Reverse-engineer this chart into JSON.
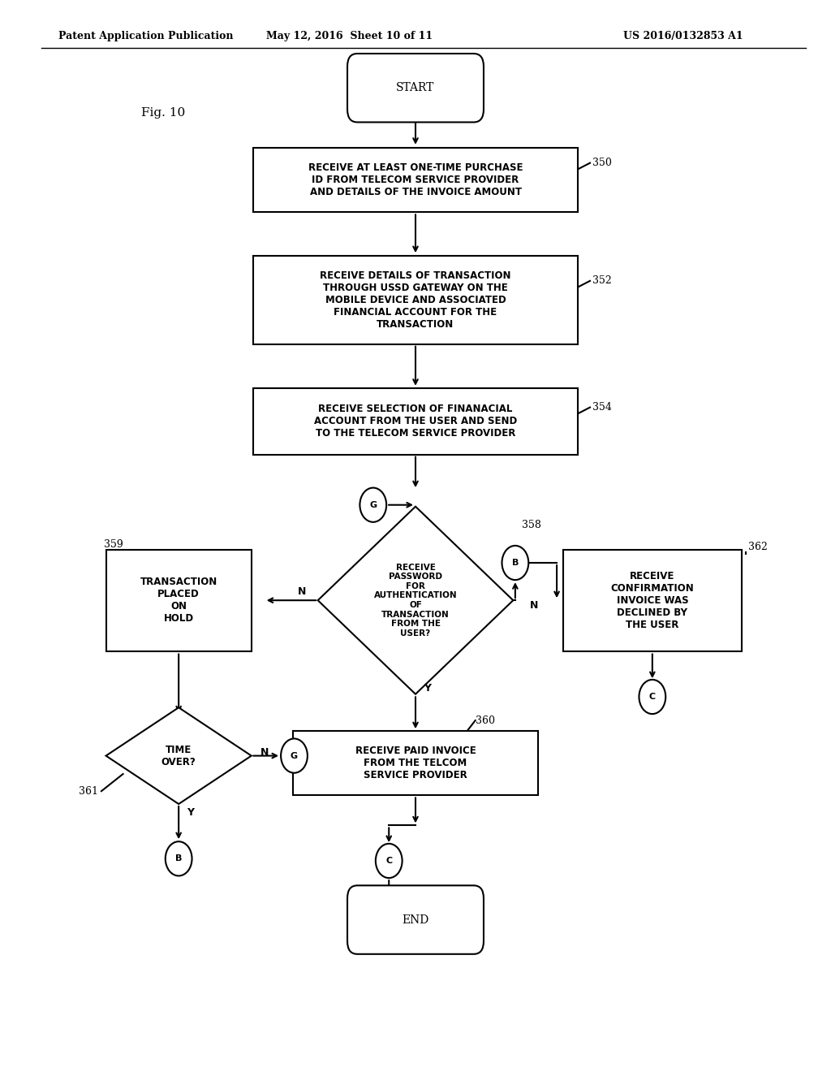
{
  "header_left": "Patent Application Publication",
  "header_mid": "May 12, 2016  Sheet 10 of 11",
  "header_right": "US 2016/0132853 A1",
  "fig_label": "Fig. 10",
  "bg_color": "#ffffff",
  "line_color": "#000000",
  "text_color": "#000000"
}
